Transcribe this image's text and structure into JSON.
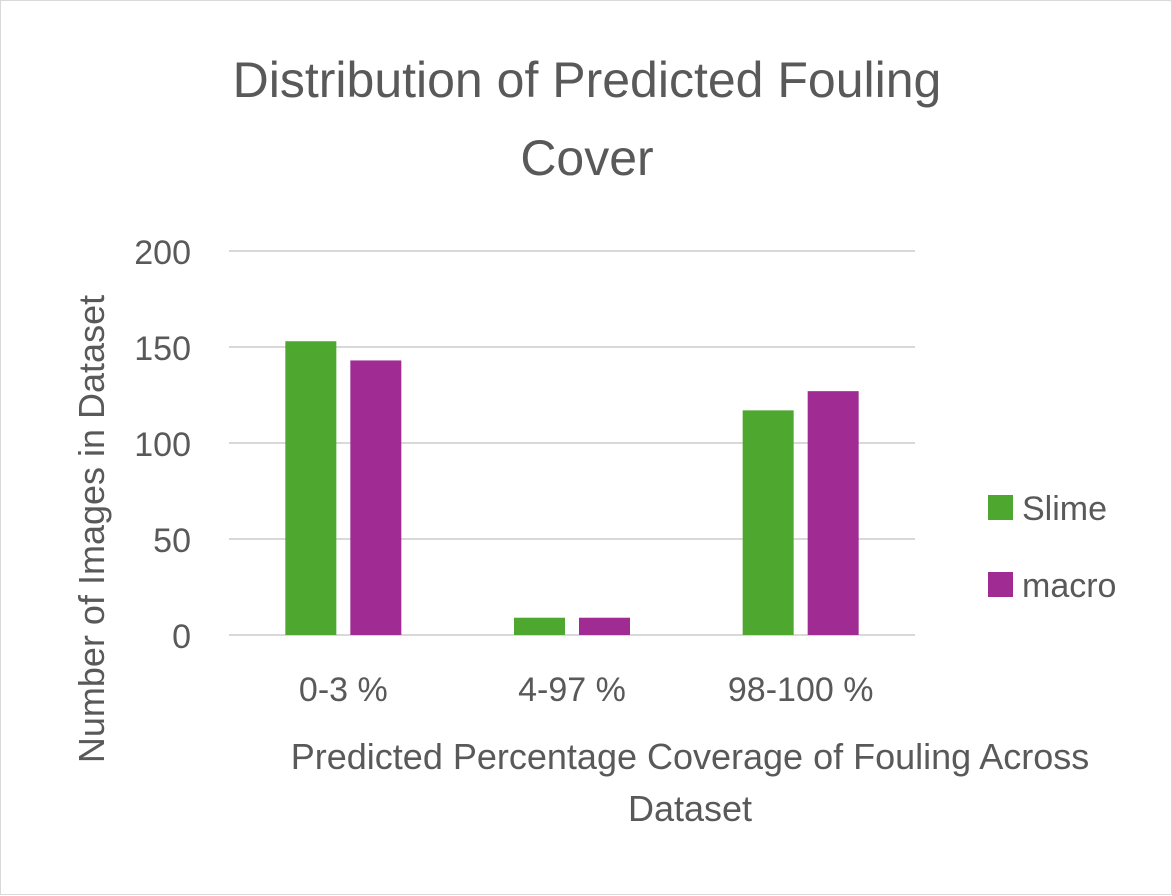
{
  "chart_data": {
    "type": "bar",
    "title_lines": [
      "Distribution of Predicted Fouling",
      "Cover"
    ],
    "xlabel_lines": [
      "Predicted Percentage Coverage of Fouling Across",
      "Dataset"
    ],
    "ylabel": "Number of Images in Dataset",
    "categories": [
      "0-3 %",
      "4-97 %",
      "98-100 %"
    ],
    "series": [
      {
        "name": "Slime",
        "values": [
          153,
          9,
          117
        ],
        "color": "#4ea72e"
      },
      {
        "name": "macro",
        "values": [
          143,
          9,
          127
        ],
        "color": "#a02b93"
      }
    ],
    "ylim": [
      0,
      200
    ],
    "yticks": [
      0,
      50,
      100,
      150,
      200
    ],
    "grid": true,
    "legend_position": "right"
  }
}
